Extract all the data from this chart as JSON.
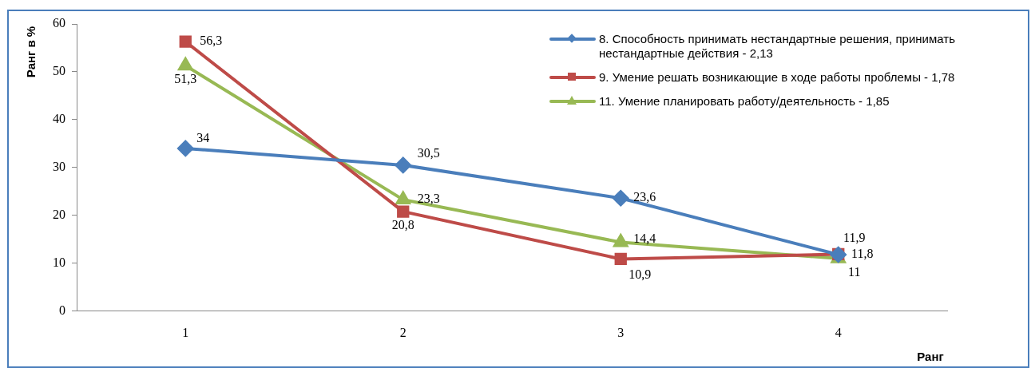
{
  "chart_data": {
    "type": "line",
    "xlabel": "Ранг",
    "ylabel": "Ранг в %",
    "categories": [
      "1",
      "2",
      "3",
      "4"
    ],
    "series": [
      {
        "name": "8. Способность принимать нестандартные решения, принимать нестандартные действия - 2,13",
        "color": "#4a7ebb",
        "marker": "diamond",
        "values": [
          34,
          30.5,
          23.6,
          11.8
        ],
        "value_labels": [
          "34",
          "30,5",
          "23,6",
          "11,8"
        ]
      },
      {
        "name": "9. Умение решать возникающие в ходе работы проблемы - 1,78",
        "color": "#be4b48",
        "marker": "square",
        "values": [
          56.3,
          20.8,
          10.9,
          11.9
        ],
        "value_labels": [
          "56,3",
          "20,8",
          "10,9",
          "11,9"
        ]
      },
      {
        "name": "11. Умение планировать работу/деятельность - 1,85",
        "color": "#98b954",
        "marker": "triangle",
        "values": [
          51.3,
          23.3,
          14.4,
          11
        ],
        "value_labels": [
          "51,3",
          "23,3",
          "14,4",
          "11"
        ]
      }
    ],
    "ylim": [
      0,
      60
    ],
    "yticks": [
      0,
      10,
      20,
      30,
      40,
      50,
      60
    ],
    "grid": false,
    "legend": "top right"
  }
}
